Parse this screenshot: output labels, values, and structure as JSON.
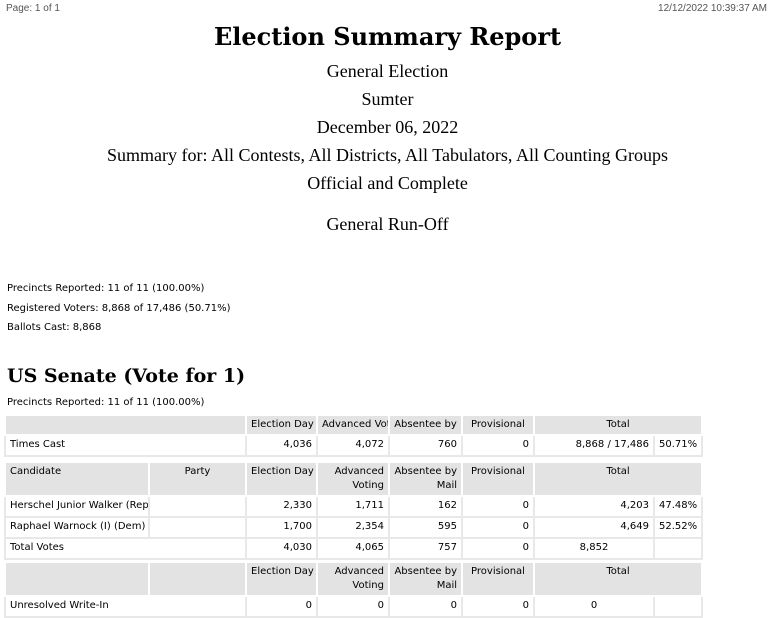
{
  "header": {
    "page": "Page: 1 of 1",
    "timestamp": "12/12/2022 10:39:37 AM"
  },
  "report": {
    "title": "Election Summary Report",
    "lines": [
      "General Election",
      "Sumter",
      "December 06, 2022",
      "Summary for: All Contests, All Districts, All Tabulators, All Counting Groups",
      "Official and Complete"
    ],
    "election_name": "General Run-Off"
  },
  "summary": {
    "precincts": "Precincts Reported: 11 of 11 (100.00%)",
    "registered": "Registered Voters: 8,868 of 17,486 (50.71%)",
    "ballots": "Ballots Cast: 8,868"
  },
  "contest": {
    "title": "US Senate (Vote for  1)",
    "precincts": "Precincts Reported: 11 of 11 (100.00%)",
    "times_cast_table": {
      "headers": [
        "Election Day",
        "Advanced Vot",
        "Absentee by",
        "Provisional",
        "Total"
      ],
      "row": {
        "label": "Times Cast",
        "values": [
          "4,036",
          "4,072",
          "760",
          "0",
          "8,868 / 17,486",
          "50.71%"
        ]
      }
    },
    "candidate_table": {
      "headers": [
        "Candidate",
        "Party",
        "Election Day",
        "Advanced Voting",
        "Absentee by Mail",
        "Provisional",
        "Total"
      ],
      "rows": [
        {
          "candidate": "Herschel Junior Walker (Rep)",
          "party": "",
          "values": [
            "2,330",
            "1,711",
            "162",
            "0",
            "4,203",
            "47.48%"
          ]
        },
        {
          "candidate": "Raphael Warnock (I) (Dem)",
          "party": "",
          "values": [
            "1,700",
            "2,354",
            "595",
            "0",
            "4,649",
            "52.52%"
          ]
        }
      ],
      "total": {
        "label": "Total Votes",
        "values": [
          "4,030",
          "4,065",
          "757",
          "0",
          "8,852",
          ""
        ]
      }
    },
    "writein_table": {
      "headers": [
        "Election Day",
        "Advanced Voting",
        "Absentee by Mail",
        "Provisional",
        "Total"
      ],
      "row": {
        "label": "Unresolved Write-In",
        "values": [
          "0",
          "0",
          "0",
          "0",
          "0",
          ""
        ]
      }
    }
  }
}
